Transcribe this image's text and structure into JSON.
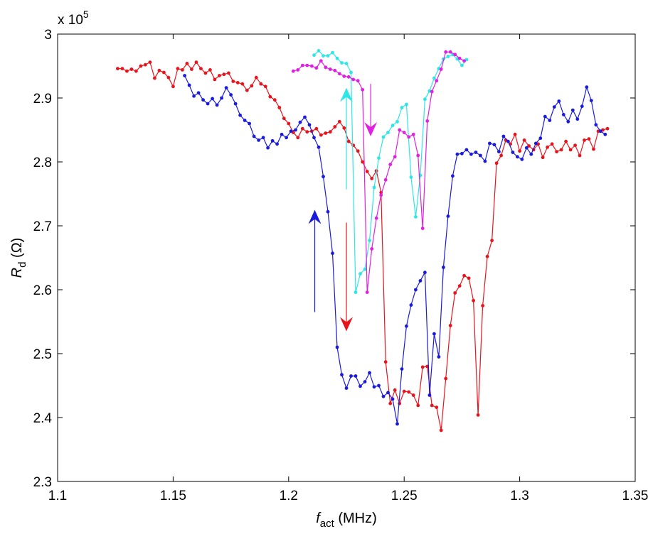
{
  "chart_data": {
    "type": "line",
    "xlabel": {
      "main": "f",
      "sub": "act",
      "unit": " (MHz)"
    },
    "ylabel": {
      "main": "R",
      "sub": "d",
      "unit": " (Ω)"
    },
    "y_multiplier": {
      "base": "x 10",
      "exp": "5"
    },
    "xlim": [
      1.1,
      1.35
    ],
    "ylim": [
      2.3,
      3.0
    ],
    "x_ticks": [
      {
        "value": 1.1,
        "label": "1.1"
      },
      {
        "value": 1.15,
        "label": "1.15"
      },
      {
        "value": 1.2,
        "label": "1.2"
      },
      {
        "value": 1.25,
        "label": "1.25"
      },
      {
        "value": 1.3,
        "label": "1.3"
      },
      {
        "value": 1.35,
        "label": "1.35"
      }
    ],
    "y_ticks": [
      {
        "value": 2.3,
        "label": "2.3"
      },
      {
        "value": 2.4,
        "label": "2.4"
      },
      {
        "value": 2.5,
        "label": "2.5"
      },
      {
        "value": 2.6,
        "label": "2.6"
      },
      {
        "value": 2.7,
        "label": "2.7"
      },
      {
        "value": 2.8,
        "label": "2.8"
      },
      {
        "value": 2.9,
        "label": "2.9"
      },
      {
        "value": 3.0,
        "label": "3"
      }
    ],
    "grid": false,
    "series": [
      {
        "color": "#e8141c",
        "x": [
          1.126,
          1.128,
          1.13,
          1.132,
          1.134,
          1.136,
          1.138,
          1.14,
          1.142,
          1.144,
          1.146,
          1.148,
          1.15,
          1.152,
          1.154,
          1.156,
          1.158,
          1.16,
          1.162,
          1.164,
          1.166,
          1.168,
          1.17,
          1.172,
          1.174,
          1.176,
          1.178,
          1.18,
          1.182,
          1.184,
          1.186,
          1.188,
          1.19,
          1.192,
          1.194,
          1.196,
          1.198,
          1.2,
          1.202,
          1.204,
          1.206,
          1.208,
          1.21,
          1.212,
          1.214,
          1.216,
          1.218,
          1.22,
          1.222,
          1.224,
          1.226,
          1.228,
          1.23,
          1.232,
          1.234,
          1.236,
          1.238,
          1.24,
          1.242,
          1.244,
          1.246,
          1.248,
          1.25,
          1.252,
          1.254,
          1.256,
          1.258,
          1.26,
          1.262,
          1.264,
          1.266,
          1.268,
          1.27,
          1.272,
          1.274,
          1.276,
          1.278,
          1.28,
          1.282,
          1.284,
          1.286,
          1.288,
          1.29,
          1.292,
          1.294,
          1.296,
          1.298,
          1.3,
          1.302,
          1.304,
          1.306,
          1.308,
          1.31,
          1.312,
          1.314,
          1.316,
          1.318,
          1.32,
          1.322,
          1.324,
          1.326,
          1.328,
          1.33,
          1.332,
          1.334,
          1.336,
          1.338
        ],
        "y": [
          2.946,
          2.946,
          2.942,
          2.945,
          2.942,
          2.95,
          2.952,
          2.956,
          2.931,
          2.943,
          2.94,
          2.932,
          2.918,
          2.946,
          2.944,
          2.954,
          2.945,
          2.956,
          2.946,
          2.939,
          2.944,
          2.929,
          2.935,
          2.937,
          2.939,
          2.926,
          2.924,
          2.922,
          2.912,
          2.919,
          2.932,
          2.922,
          2.918,
          2.902,
          2.897,
          2.885,
          2.868,
          2.86,
          2.846,
          2.838,
          2.852,
          2.847,
          2.848,
          2.852,
          2.842,
          2.845,
          2.847,
          2.855,
          2.863,
          2.853,
          2.832,
          2.826,
          2.817,
          2.8,
          2.785,
          2.774,
          2.786,
          2.752,
          2.487,
          2.422,
          2.443,
          2.422,
          2.441,
          2.44,
          2.435,
          2.419,
          2.479,
          2.48,
          2.419,
          2.416,
          2.38,
          2.461,
          2.544,
          2.595,
          2.606,
          2.622,
          2.618,
          2.583,
          2.404,
          2.575,
          2.652,
          2.677,
          2.798,
          2.81,
          2.834,
          2.828,
          2.843,
          2.817,
          2.834,
          2.825,
          2.819,
          2.828,
          2.807,
          2.823,
          2.828,
          2.816,
          2.819,
          2.832,
          2.819,
          2.826,
          2.81,
          2.834,
          2.836,
          2.82,
          2.848,
          2.85,
          2.852
        ],
        "start": 0,
        "comment_ignore": "placeholder"
      }
    ]
  }
}
